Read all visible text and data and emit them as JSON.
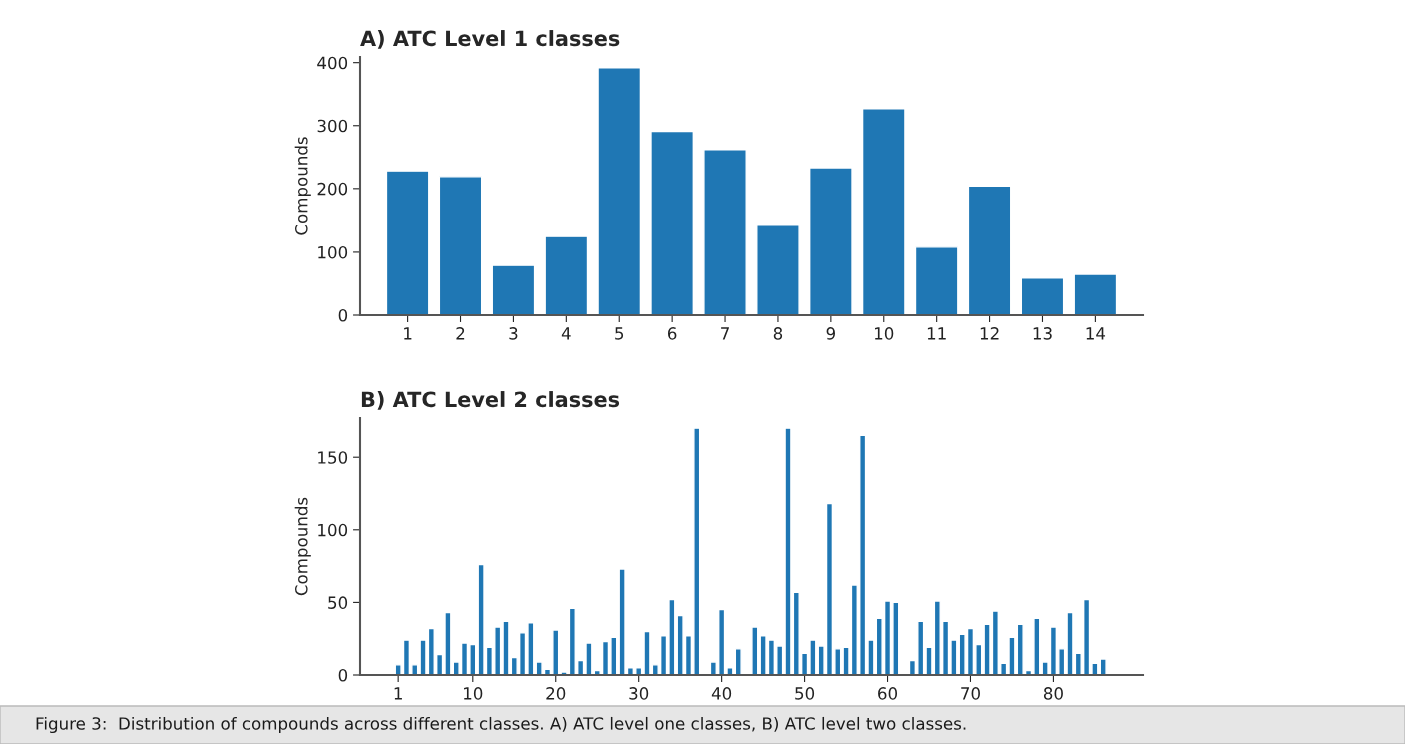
{
  "chart_data": [
    {
      "type": "bar",
      "title": "A) ATC Level 1 classes",
      "ylabel": "Compounds",
      "color": "#1f77b4",
      "categories": [
        "1",
        "2",
        "3",
        "4",
        "5",
        "6",
        "7",
        "8",
        "9",
        "10",
        "11",
        "12",
        "13",
        "14"
      ],
      "values": [
        228,
        219,
        79,
        125,
        392,
        291,
        262,
        143,
        233,
        327,
        108,
        204,
        59,
        65
      ],
      "ylim": [
        0,
        409
      ],
      "yticks": [
        0,
        100,
        200,
        300,
        400
      ],
      "grid": false
    },
    {
      "type": "bar",
      "title": "B) ATC Level 2 classes",
      "ylabel": "Compounds",
      "color": "#1f77b4",
      "x": [
        1,
        2,
        3,
        4,
        5,
        6,
        7,
        8,
        9,
        10,
        11,
        12,
        13,
        14,
        15,
        16,
        17,
        18,
        19,
        20,
        21,
        22,
        23,
        24,
        25,
        26,
        27,
        28,
        29,
        30,
        31,
        32,
        33,
        34,
        35,
        36,
        37,
        38,
        39,
        40,
        41,
        42,
        43,
        44,
        45,
        46,
        47,
        48,
        49,
        50,
        51,
        52,
        53,
        54,
        55,
        56,
        57,
        58,
        59,
        60,
        61,
        62,
        63,
        64,
        65,
        66,
        67,
        68,
        69,
        70,
        71,
        72,
        73,
        74,
        75,
        76,
        77,
        78,
        79,
        80,
        81,
        82,
        83,
        84,
        85,
        86,
        87
      ],
      "values": [
        7,
        24,
        7,
        24,
        32,
        14,
        43,
        9,
        22,
        21,
        76,
        19,
        33,
        37,
        12,
        29,
        36,
        9,
        4,
        31,
        2,
        46,
        10,
        22,
        3,
        23,
        26,
        73,
        5,
        5,
        30,
        7,
        27,
        52,
        41,
        27,
        170,
        1,
        9,
        45,
        5,
        18,
        1,
        33,
        27,
        24,
        20,
        170,
        57,
        15,
        24,
        20,
        118,
        18,
        19,
        62,
        165,
        24,
        39,
        51,
        50,
        1,
        10,
        37,
        19,
        51,
        37,
        24,
        28,
        32,
        21,
        35,
        44,
        8,
        26,
        35,
        3,
        39,
        9,
        33,
        18,
        43,
        15,
        52,
        8,
        11,
        1
      ],
      "xlim": [
        -3.6,
        90.8
      ],
      "xticks": [
        1,
        10,
        20,
        30,
        40,
        50,
        60,
        70,
        80
      ],
      "ylim": [
        0,
        177
      ],
      "yticks": [
        0,
        50,
        100,
        150
      ],
      "grid": false,
      "annotations": [
        "Figure 3:  Distribution of compounds across different classes. A) ATC level one classes, B) ATC level two classes."
      ]
    }
  ]
}
